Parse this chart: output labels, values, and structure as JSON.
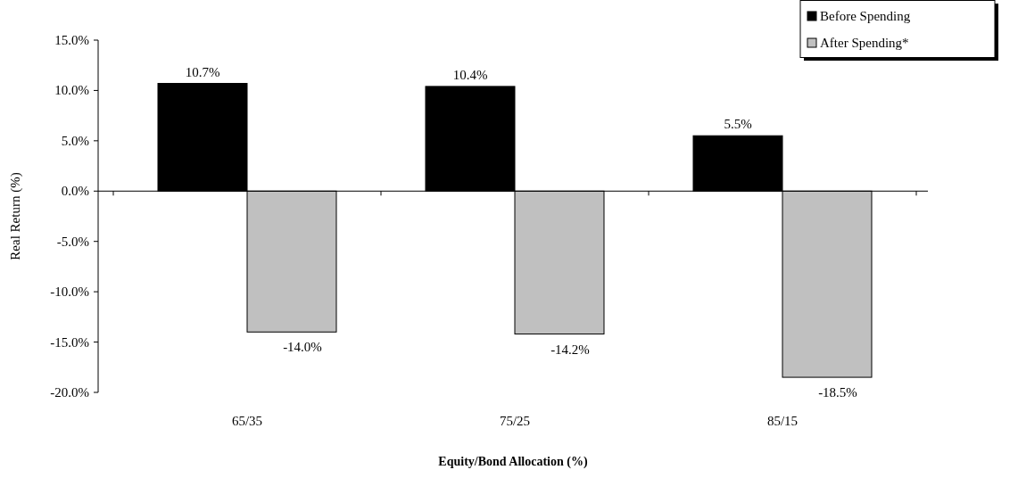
{
  "chart_data": {
    "type": "bar",
    "xlabel": "Equity/Bond Allocation (%)",
    "ylabel": "Real Return (%)",
    "categories": [
      "65/35",
      "75/25",
      "85/15"
    ],
    "series": [
      {
        "name": "Before Spending",
        "color": "#000000",
        "values": [
          10.7,
          10.4,
          5.5
        ],
        "value_labels": [
          "10.7%",
          "10.4%",
          "5.5%"
        ]
      },
      {
        "name": "After Spending*",
        "color": "#c0c0c0",
        "values": [
          -14.0,
          -14.2,
          -18.5
        ],
        "value_labels": [
          "-14.0%",
          "-14.2%",
          "-18.5%"
        ]
      }
    ],
    "ylim": [
      -20,
      15
    ],
    "yticks": [
      {
        "value": -20,
        "label": "-20.0%"
      },
      {
        "value": -15,
        "label": "-15.0%"
      },
      {
        "value": -10,
        "label": "-10.0%"
      },
      {
        "value": -5,
        "label": "-5.0%"
      },
      {
        "value": 0,
        "label": "0.0%"
      },
      {
        "value": 5,
        "label": "5.0%"
      },
      {
        "value": 10,
        "label": "10.0%"
      },
      {
        "value": 15,
        "label": "15.0%"
      }
    ],
    "legend": "top right"
  }
}
